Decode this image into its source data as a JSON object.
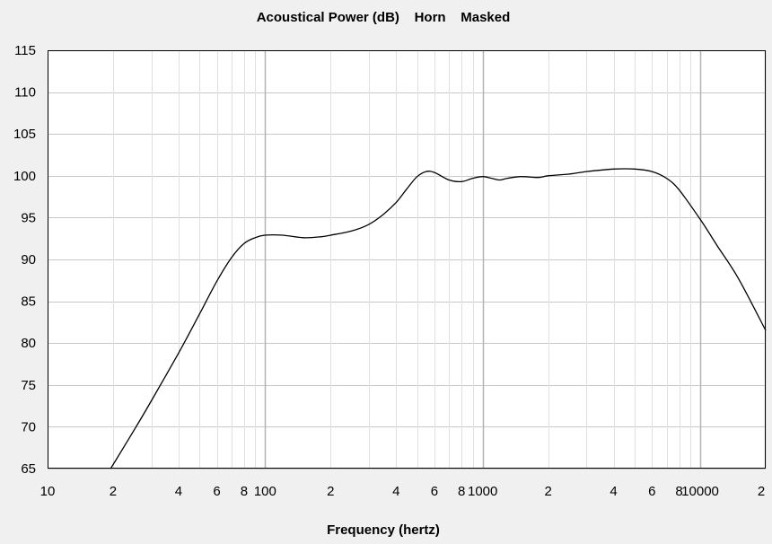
{
  "chart_data": {
    "type": "line",
    "title": "Acoustical Power (dB)    Horn    Masked",
    "xlabel": "Frequency (hertz)",
    "ylabel": "",
    "x_scale": "log",
    "xlim": [
      10,
      20000
    ],
    "ylim": [
      65,
      115
    ],
    "grid": true,
    "y_ticks": [
      115,
      110,
      105,
      100,
      95,
      90,
      85,
      80,
      75,
      70,
      65
    ],
    "x_ticks": [
      {
        "value": 10,
        "label": "10"
      },
      {
        "value": 20,
        "label": "2"
      },
      {
        "value": 40,
        "label": "4"
      },
      {
        "value": 60,
        "label": "6"
      },
      {
        "value": 80,
        "label": "8"
      },
      {
        "value": 100,
        "label": "100"
      },
      {
        "value": 200,
        "label": "2"
      },
      {
        "value": 400,
        "label": "4"
      },
      {
        "value": 600,
        "label": "6"
      },
      {
        "value": 800,
        "label": "8"
      },
      {
        "value": 1000,
        "label": "1000"
      },
      {
        "value": 2000,
        "label": "2"
      },
      {
        "value": 4000,
        "label": "4"
      },
      {
        "value": 6000,
        "label": "6"
      },
      {
        "value": 8000,
        "label": "8"
      },
      {
        "value": 10000,
        "label": "10000"
      },
      {
        "value": 20000,
        "label": "2"
      }
    ],
    "series": [
      {
        "x": [
          19.5,
          25,
          30,
          40,
          50,
          60,
          70,
          80,
          90,
          100,
          120,
          150,
          180,
          200,
          250,
          300,
          350,
          400,
          450,
          500,
          550,
          600,
          700,
          800,
          900,
          1000,
          1100,
          1200,
          1300,
          1500,
          1800,
          2000,
          2500,
          3000,
          4000,
          5000,
          6000,
          7000,
          8000,
          10000,
          12000,
          15000,
          20000
        ],
        "y": [
          65,
          69.6,
          73.1,
          78.8,
          83.5,
          87.4,
          90.2,
          91.9,
          92.6,
          92.9,
          92.9,
          92.6,
          92.7,
          92.9,
          93.4,
          94.2,
          95.4,
          96.8,
          98.5,
          99.9,
          100.5,
          100.4,
          99.5,
          99.3,
          99.7,
          99.9,
          99.7,
          99.5,
          99.7,
          99.9,
          99.8,
          100.0,
          100.2,
          100.5,
          100.8,
          100.8,
          100.5,
          99.7,
          98.3,
          94.8,
          91.6,
          87.7,
          81.5
        ]
      }
    ]
  }
}
